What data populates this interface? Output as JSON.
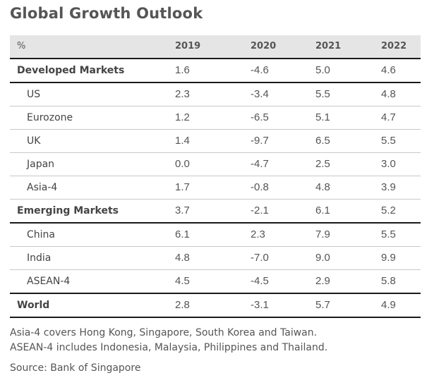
{
  "title": "Global Growth Outlook",
  "table": {
    "unit_label": "%",
    "years": [
      "2019",
      "2020",
      "2021",
      "2022"
    ],
    "rows": [
      {
        "label": "Developed Markets",
        "values": [
          "1.6",
          "-4.6",
          "5.0",
          "4.6"
        ]
      },
      {
        "label": "US",
        "values": [
          "2.3",
          "-3.4",
          "5.5",
          "4.8"
        ]
      },
      {
        "label": "Eurozone",
        "values": [
          "1.2",
          "-6.5",
          "5.1",
          "4.7"
        ]
      },
      {
        "label": "UK",
        "values": [
          "1.4",
          "-9.7",
          "6.5",
          "5.5"
        ]
      },
      {
        "label": "Japan",
        "values": [
          "0.0",
          "-4.7",
          "2.5",
          "3.0"
        ]
      },
      {
        "label": "Asia-4",
        "values": [
          "1.7",
          "-0.8",
          "4.8",
          "3.9"
        ]
      },
      {
        "label": "Emerging Markets",
        "values": [
          "3.7",
          "-2.1",
          "6.1",
          "5.2"
        ]
      },
      {
        "label": "China",
        "values": [
          "6.1",
          "2.3",
          "7.9",
          "5.5"
        ]
      },
      {
        "label": "India",
        "values": [
          "4.8",
          "-7.0",
          "9.0",
          "9.9"
        ]
      },
      {
        "label": "ASEAN-4",
        "values": [
          "4.5",
          "-4.5",
          "2.9",
          "5.8"
        ]
      },
      {
        "label": "World",
        "values": [
          "2.8",
          "-3.1",
          "5.7",
          "4.9"
        ]
      }
    ]
  },
  "footnotes": [
    "Asia-4 covers Hong Kong, Singapore, South Korea and Taiwan.",
    "ASEAN-4 includes Indonesia, Malaysia, Philippines and Thailand."
  ],
  "source": "Source: Bank of Singapore"
}
